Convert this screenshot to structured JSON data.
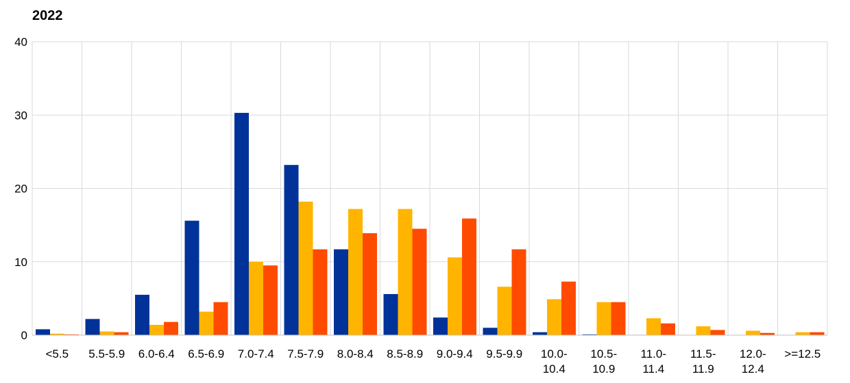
{
  "chart_data": {
    "type": "bar",
    "title": "2022",
    "xlabel": "",
    "ylabel": "",
    "ylim": [
      0,
      40
    ],
    "yticks": [
      0,
      10,
      20,
      30,
      40
    ],
    "grid": true,
    "categories": [
      "<5.5",
      "5.5-5.9",
      "6.0-6.4",
      "6.5-6.9",
      "7.0-7.4",
      "7.5-7.9",
      "8.0-8.4",
      "8.5-8.9",
      "9.0-9.4",
      "9.5-9.9",
      "10.0-\n10.4",
      "10.5-\n10.9",
      "11.0-\n11.4",
      "11.5-\n11.9",
      "12.0-\n12.4",
      ">=12.5"
    ],
    "series": [
      {
        "color": "#003299",
        "values": [
          0.8,
          2.2,
          5.5,
          15.6,
          30.3,
          23.2,
          11.7,
          5.6,
          2.4,
          1.0,
          0.4,
          0.1,
          0.05,
          0,
          0,
          0
        ]
      },
      {
        "color": "#FFB400",
        "values": [
          0.2,
          0.5,
          1.4,
          3.2,
          10.0,
          18.2,
          17.2,
          17.2,
          10.6,
          6.6,
          4.9,
          4.5,
          2.3,
          1.2,
          0.6,
          0.4
        ]
      },
      {
        "color": "#FF4B00",
        "values": [
          0.1,
          0.4,
          1.8,
          4.5,
          9.5,
          11.7,
          13.9,
          14.5,
          15.9,
          11.7,
          7.3,
          4.5,
          1.6,
          0.7,
          0.3,
          0.4
        ]
      }
    ]
  }
}
